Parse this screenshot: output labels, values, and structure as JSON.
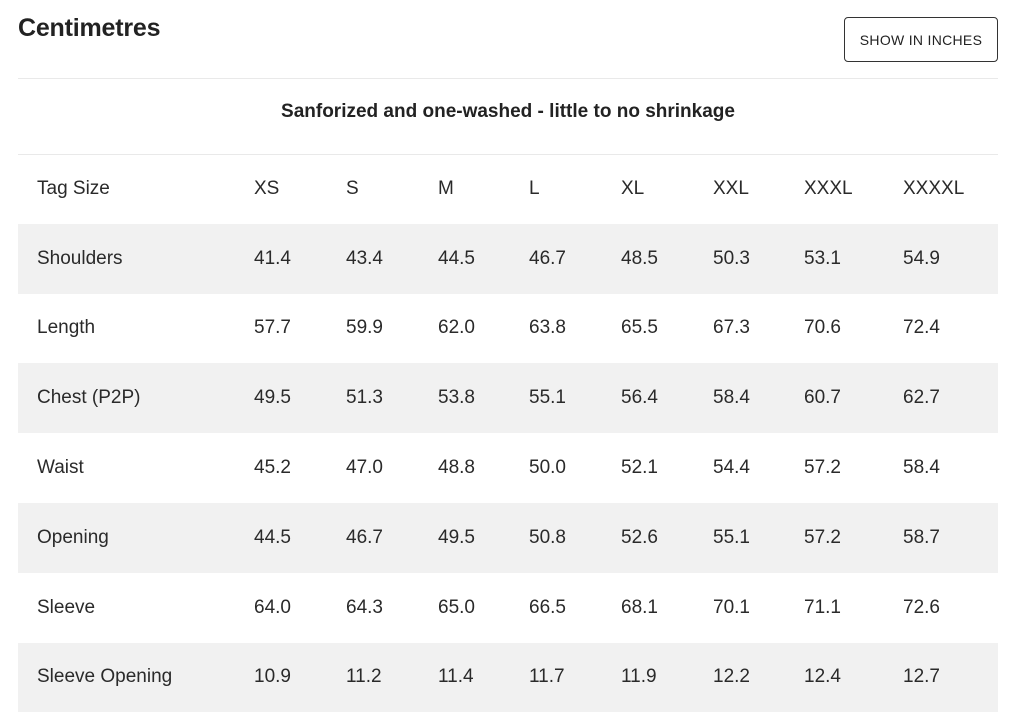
{
  "header": {
    "title": "Centimetres",
    "toggle_label": "SHOW IN INCHES"
  },
  "subtitle": "Sanforized and one-washed - little to no shrinkage",
  "table": {
    "header": {
      "label": "Tag Size",
      "sizes": [
        "XS",
        "S",
        "M",
        "L",
        "XL",
        "XXL",
        "XXXL",
        "XXXXL"
      ]
    },
    "rows": [
      {
        "label": "Shoulders",
        "values": [
          "41.4",
          "43.4",
          "44.5",
          "46.7",
          "48.5",
          "50.3",
          "53.1",
          "54.9"
        ]
      },
      {
        "label": "Length",
        "values": [
          "57.7",
          "59.9",
          "62.0",
          "63.8",
          "65.5",
          "67.3",
          "70.6",
          "72.4"
        ]
      },
      {
        "label": "Chest (P2P)",
        "values": [
          "49.5",
          "51.3",
          "53.8",
          "55.1",
          "56.4",
          "58.4",
          "60.7",
          "62.7"
        ]
      },
      {
        "label": "Waist",
        "values": [
          "45.2",
          "47.0",
          "48.8",
          "50.0",
          "52.1",
          "54.4",
          "57.2",
          "58.4"
        ]
      },
      {
        "label": "Opening",
        "values": [
          "44.5",
          "46.7",
          "49.5",
          "50.8",
          "52.6",
          "55.1",
          "57.2",
          "58.7"
        ]
      },
      {
        "label": "Sleeve",
        "values": [
          "64.0",
          "64.3",
          "65.0",
          "66.5",
          "68.1",
          "70.1",
          "71.1",
          "72.6"
        ]
      },
      {
        "label": "Sleeve Opening",
        "values": [
          "10.9",
          "11.2",
          "11.4",
          "11.7",
          "11.9",
          "12.2",
          "12.4",
          "12.7"
        ]
      }
    ]
  },
  "colors": {
    "text": "#222222",
    "row_shade": "#f1f1f1",
    "divider": "#e9e9e9",
    "button_border": "#333333"
  }
}
